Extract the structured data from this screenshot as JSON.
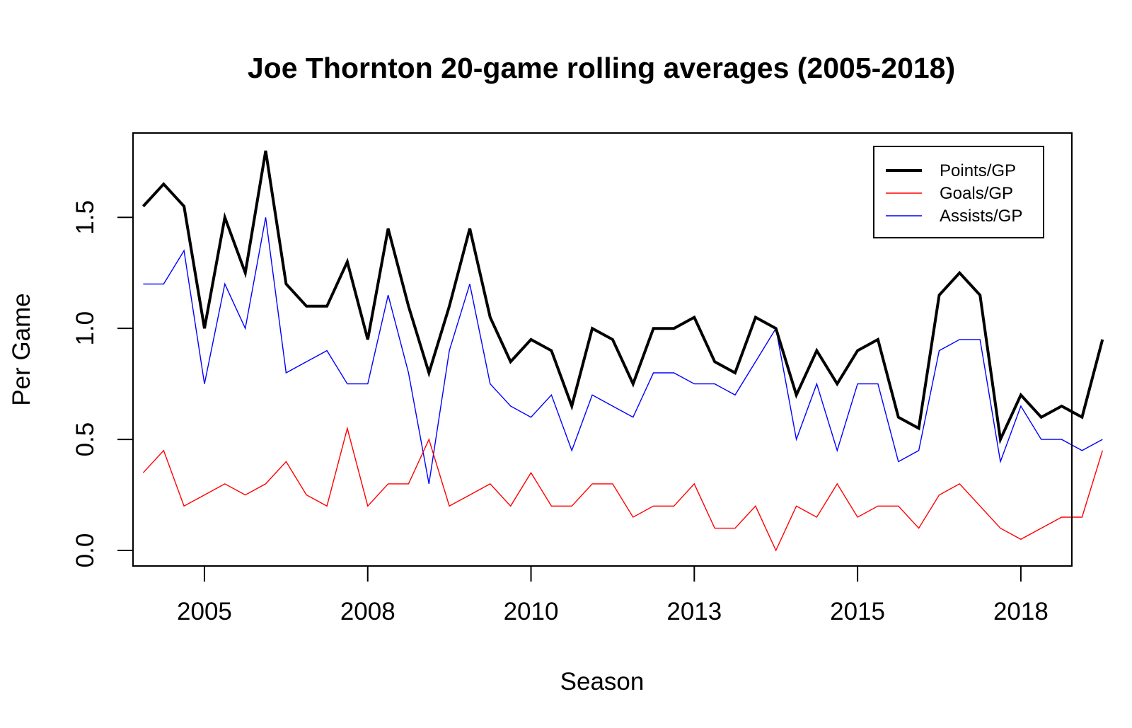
{
  "chart_data": {
    "type": "line",
    "title": "Joe Thornton 20-game rolling averages (2005-2018)",
    "xlabel": "Season",
    "ylabel": "Per Game",
    "xlim": [
      0.5,
      46.5
    ],
    "ylim": [
      -0.07,
      1.88
    ],
    "x_ticks": [
      {
        "pos": 4,
        "label": "2005"
      },
      {
        "pos": 12,
        "label": "2008"
      },
      {
        "pos": 20,
        "label": "2010"
      },
      {
        "pos": 28,
        "label": "2013"
      },
      {
        "pos": 36,
        "label": "2015"
      },
      {
        "pos": 44,
        "label": "2018"
      }
    ],
    "y_ticks": [
      {
        "value": 0.0,
        "label": "0.0"
      },
      {
        "value": 0.5,
        "label": "0.5"
      },
      {
        "value": 1.0,
        "label": "1.0"
      },
      {
        "value": 1.5,
        "label": "1.5"
      }
    ],
    "grid": false,
    "legend": {
      "position": "top-right",
      "entries": [
        {
          "label": "Points/GP",
          "color": "#000000"
        },
        {
          "label": "Goals/GP",
          "color": "#ff0000"
        },
        {
          "label": "Assists/GP",
          "color": "#0000ff"
        }
      ]
    },
    "series": [
      {
        "name": "Points/GP",
        "color": "#000000",
        "values": [
          1.55,
          1.65,
          1.55,
          1.0,
          1.5,
          1.25,
          1.8,
          1.2,
          1.1,
          1.1,
          1.3,
          0.95,
          1.45,
          1.1,
          0.8,
          1.1,
          1.45,
          1.05,
          0.85,
          0.95,
          0.9,
          0.65,
          1.0,
          0.95,
          0.75,
          1.0,
          1.0,
          1.05,
          0.85,
          0.8,
          1.05,
          1.0,
          0.7,
          0.9,
          0.75,
          0.9,
          0.95,
          0.6,
          0.55,
          1.15,
          1.25,
          1.15,
          0.5,
          0.7,
          0.6,
          0.65,
          0.6,
          0.95
        ]
      },
      {
        "name": "Goals/GP",
        "color": "#ff0000",
        "values": [
          0.35,
          0.45,
          0.2,
          0.25,
          0.3,
          0.25,
          0.3,
          0.4,
          0.25,
          0.2,
          0.55,
          0.2,
          0.3,
          0.3,
          0.5,
          0.2,
          0.25,
          0.3,
          0.2,
          0.35,
          0.2,
          0.2,
          0.3,
          0.3,
          0.15,
          0.2,
          0.2,
          0.3,
          0.1,
          0.1,
          0.2,
          0.0,
          0.2,
          0.15,
          0.3,
          0.15,
          0.2,
          0.2,
          0.1,
          0.25,
          0.3,
          0.2,
          0.1,
          0.05,
          0.1,
          0.15,
          0.15,
          0.45
        ]
      },
      {
        "name": "Assists/GP",
        "color": "#0000ff",
        "values": [
          1.2,
          1.2,
          1.35,
          0.75,
          1.2,
          1.0,
          1.5,
          0.8,
          0.85,
          0.9,
          0.75,
          0.75,
          1.15,
          0.8,
          0.3,
          0.9,
          1.2,
          0.75,
          0.65,
          0.6,
          0.7,
          0.45,
          0.7,
          0.65,
          0.6,
          0.8,
          0.8,
          0.75,
          0.75,
          0.7,
          0.85,
          1.0,
          0.5,
          0.75,
          0.45,
          0.75,
          0.75,
          0.4,
          0.45,
          0.9,
          0.95,
          0.95,
          0.4,
          0.65,
          0.5,
          0.5,
          0.45,
          0.5
        ]
      }
    ]
  }
}
